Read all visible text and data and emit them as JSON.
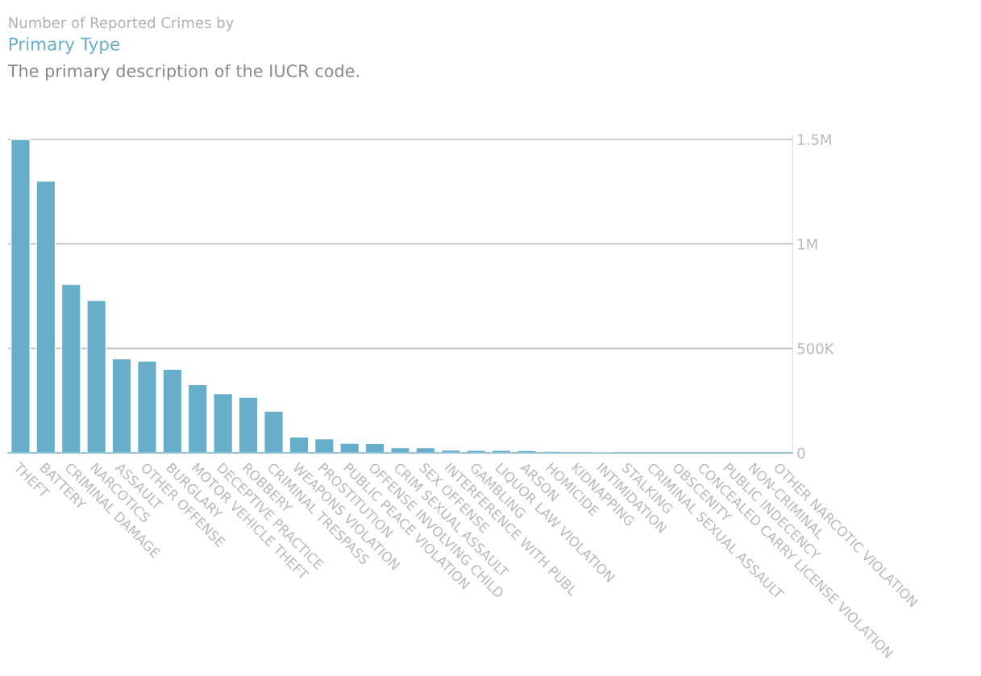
{
  "chart_data": {
    "type": "bar",
    "title": "Number of Reported Crimes by",
    "subtitle": "Primary Type",
    "annotations": [
      "The primary description of the IUCR code."
    ],
    "categories": [
      "THEFT",
      "BATTERY",
      "CRIMINAL DAMAGE",
      "NARCOTICS",
      "ASSAULT",
      "OTHER OFFENSE",
      "BURGLARY",
      "MOTOR VEHICLE THEFT",
      "DECEPTIVE PRACTICE",
      "ROBBERY",
      "CRIMINAL TRESPASS",
      "WEAPONS VIOLATION",
      "PROSTITUTION",
      "PUBLIC PEACE VIOLATION",
      "OFFENSE INVOLVING CHILD",
      "CRIM SEXUAL ASSAULT",
      "SEX OFFENSE",
      "INTERFERENCE WITH PUBL",
      "GAMBLING",
      "LIQUOR LAW VIOLATION",
      "ARSON",
      "HOMICIDE",
      "KIDNAPPING",
      "INTIMIDATION",
      "STALKING",
      "CRIMINAL SEXUAL ASSAULT",
      "OBSCENITY",
      "CONCEALED CARRY LICENSE VIOLATION",
      "PUBLIC INDECENCY",
      "NON-CRIMINAL",
      "OTHER NARCOTIC VIOLATION"
    ],
    "values": [
      1500000,
      1300000,
      806000,
      730000,
      450000,
      440000,
      400000,
      327000,
      284000,
      266000,
      200000,
      76000,
      68000,
      47000,
      46000,
      25000,
      25000,
      14000,
      13000,
      13000,
      12000,
      8000,
      null,
      4000,
      null,
      null,
      null,
      null,
      null,
      null,
      null
    ],
    "color": "#67aecb",
    "ylim": [
      0,
      1520000
    ],
    "yticks": [
      {
        "value": 0,
        "label": "0"
      },
      {
        "value": 500000,
        "label": "500K"
      },
      {
        "value": 1000000,
        "label": "1M"
      },
      {
        "value": 1500000,
        "label": "1.5M"
      }
    ],
    "grid": "y"
  }
}
